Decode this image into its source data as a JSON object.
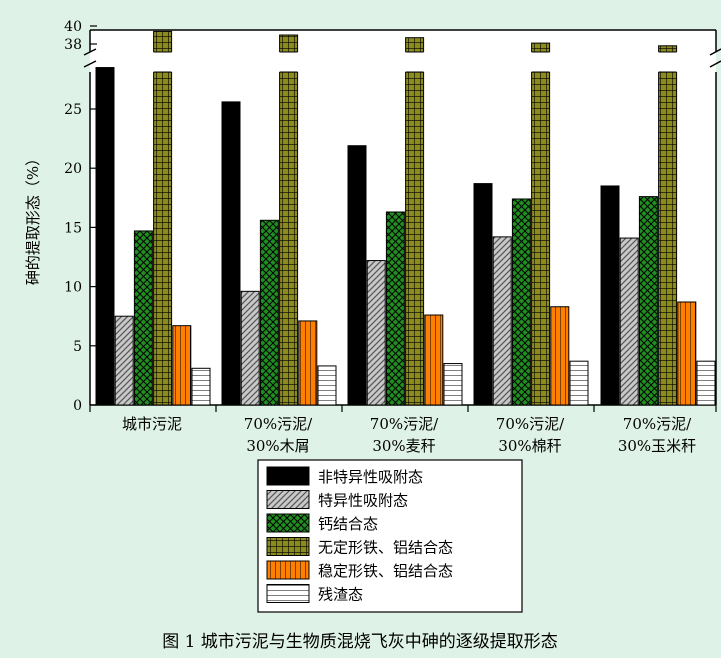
{
  "chart_data": {
    "type": "bar",
    "title": "",
    "ylabel": "砷的提取形态（%）",
    "xlabel": "",
    "ylim": [
      0,
      40
    ],
    "y_axis_break": [
      28.5,
      37.5
    ],
    "yticks": [
      0,
      5,
      10,
      15,
      20,
      25,
      38,
      40
    ],
    "categories": [
      [
        "城市污泥"
      ],
      [
        "70%污泥/",
        "30%木屑"
      ],
      [
        "70%污泥/",
        "30%麦秆"
      ],
      [
        "70%污泥/",
        "30%棉秆"
      ],
      [
        "70%污泥/",
        "30%玉米秆"
      ]
    ],
    "series": [
      {
        "name": "非特异性吸附态",
        "color": "#000000",
        "pattern": "solid",
        "values": [
          28.5,
          25.6,
          21.9,
          18.7,
          18.5
        ]
      },
      {
        "name": "特异性吸附态",
        "color": "#c0c0c0",
        "pattern": "diagonal",
        "values": [
          7.5,
          9.6,
          12.2,
          14.2,
          14.1
        ]
      },
      {
        "name": "钙结合态",
        "color": "#1f8f1f",
        "pattern": "crosshatch",
        "values": [
          14.7,
          15.6,
          16.3,
          17.4,
          17.6
        ]
      },
      {
        "name": "无定形铁、铝结合态",
        "color": "#8c8c1e",
        "pattern": "grid",
        "values": [
          39.4,
          39.0,
          38.7,
          38.1,
          37.8
        ]
      },
      {
        "name": "稳定形铁、铝结合态",
        "color": "#ff7f00",
        "pattern": "vertical",
        "values": [
          6.7,
          7.1,
          7.6,
          8.3,
          8.7
        ]
      },
      {
        "name": "残渣态",
        "color": "#ffffff",
        "pattern": "horizontal",
        "values": [
          3.1,
          3.3,
          3.5,
          3.7,
          3.7
        ]
      }
    ],
    "legend_position": "bottom-center"
  },
  "caption": "图 1  城市污泥与生物质混烧飞灰中砷的逐级提取形态"
}
